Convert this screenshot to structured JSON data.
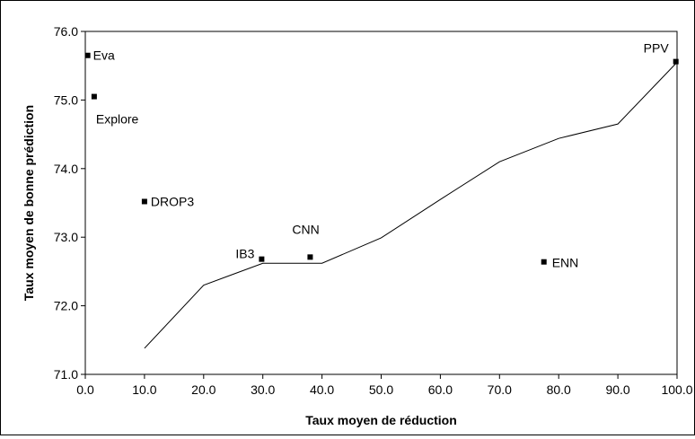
{
  "chart_data": {
    "type": "scatter",
    "title": "",
    "xlabel": "Taux moyen de réduction",
    "ylabel": "Taux moyen de bonne prédiction",
    "xlim": [
      0,
      100
    ],
    "ylim": [
      71,
      76
    ],
    "x_ticks": [
      "0.0",
      "10.0",
      "20.0",
      "30.0",
      "40.0",
      "50.0",
      "60.0",
      "70.0",
      "80.0",
      "90.0",
      "100.0"
    ],
    "y_ticks": [
      "71.0",
      "72.0",
      "73.0",
      "74.0",
      "75.0",
      "76.0"
    ],
    "grid": false,
    "legend": "none",
    "line_series": {
      "x": [
        10,
        20,
        30,
        40,
        50,
        60,
        70,
        80,
        90,
        100
      ],
      "y": [
        71.38,
        72.3,
        72.62,
        72.62,
        72.99,
        73.55,
        74.1,
        74.44,
        74.65,
        75.55
      ],
      "color": "#000000"
    },
    "points": [
      {
        "label": "Eva",
        "x": 0.4,
        "y": 75.65
      },
      {
        "label": "Explore",
        "x": 1.5,
        "y": 75.05
      },
      {
        "label": "DROP3",
        "x": 10.0,
        "y": 73.52
      },
      {
        "label": "IB3",
        "x": 29.8,
        "y": 72.68
      },
      {
        "label": "CNN",
        "x": 38.0,
        "y": 72.71
      },
      {
        "label": "ENN",
        "x": 77.5,
        "y": 72.64
      },
      {
        "label": "PPV",
        "x": 99.8,
        "y": 75.56
      }
    ]
  }
}
